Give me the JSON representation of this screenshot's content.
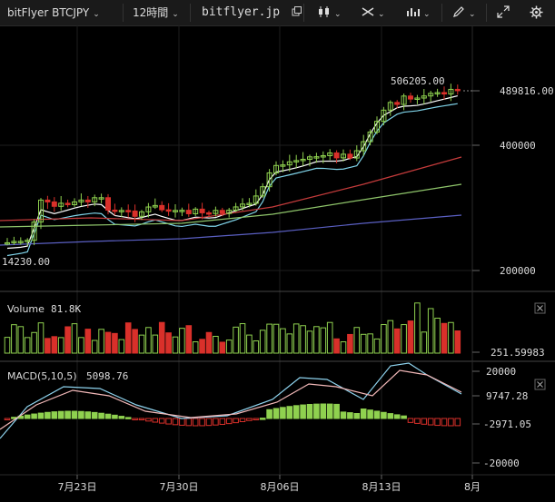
{
  "toolbar": {
    "symbol": "bitFlyer BTCJPY",
    "interval": "12時間",
    "site": "bitflyer.jp"
  },
  "main_chart": {
    "price_axis_labels": [
      "489816.00",
      "400000",
      "200000"
    ],
    "high_label": "506205.00",
    "low_label": "14230.00"
  },
  "volume_panel": {
    "label": "Volume",
    "value": "81.8K",
    "axis_label": "251.59983"
  },
  "macd_panel": {
    "label": "MACD(5,10,5)",
    "value": "5098.76",
    "axis_labels": [
      "20000",
      "9747.28",
      "-2971.05",
      "-20000"
    ]
  },
  "time_axis": {
    "labels": [
      "7月23日",
      "7月30日",
      "8月06日",
      "8月13日",
      "8月"
    ]
  },
  "colors": {
    "up": "#8fd14f",
    "down": "#d9302a",
    "ma_fast": "#ffffff",
    "ma_2": "#7fd3e8",
    "ma_3": "#c43b3b",
    "ma_4": "#8ec46a",
    "ma_5": "#5a5fc2",
    "macd_line": "#8ed3ee",
    "signal_line": "#f2b8b8"
  }
}
